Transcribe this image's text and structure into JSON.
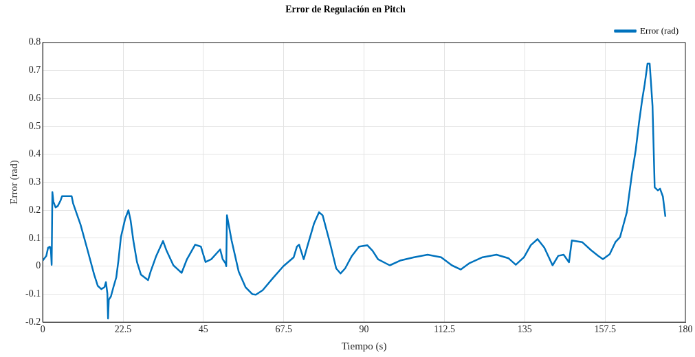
{
  "chart_data": {
    "type": "line",
    "title": "Error de Regulación en Pitch",
    "xlabel": "Tiempo (s)",
    "ylabel": "Error (rad)",
    "x": [
      0,
      1,
      1.5,
      2,
      2.3,
      2.5,
      2.7,
      3,
      3.6,
      4.2,
      5,
      5.4,
      6.7,
      8.1,
      8.5,
      10.6,
      12.5,
      14.4,
      15.4,
      16.4,
      17.3,
      17.7,
      18.1,
      18.3,
      18.5,
      19.1,
      19.8,
      20.6,
      21.2,
      21.9,
      23.1,
      24,
      24.6,
      25.4,
      26.4,
      27.5,
      29.5,
      30.2,
      31.8,
      33.7,
      34.7,
      36.6,
      38.9,
      40.4,
      42.7,
      44.3,
      45.6,
      47.2,
      49.7,
      50.4,
      51.2,
      51.4,
      51.6,
      52.9,
      54.9,
      56.8,
      58.7,
      59.7,
      61.6,
      64.5,
      67.4,
      70.3,
      71.2,
      71.8,
      73.1,
      74.1,
      76,
      77.4,
      78.4,
      80.5,
      82.2,
      83.4,
      84.7,
      86.6,
      88.6,
      90.9,
      92.4,
      93.9,
      97.2,
      100.1,
      104,
      107.8,
      111.6,
      114.6,
      117.1,
      119.4,
      123.2,
      127.1,
      130.5,
      132.5,
      134.8,
      136.7,
      138.6,
      140.5,
      142,
      142.8,
      144.4,
      145.9,
      147.4,
      148.2,
      151.1,
      153.6,
      155.6,
      156.9,
      158.8,
      160.4,
      161.7,
      162.5,
      163.6,
      165,
      166.1,
      167,
      167.9,
      168.6,
      169.4,
      170,
      170.4,
      170.8,
      171.4,
      172.3,
      172.9,
      173.7,
      174.4
    ],
    "series": [
      {
        "name": "Error (rad)",
        "color": "#0072bd",
        "values": [
          0.02,
          0.037,
          0.066,
          0.07,
          0.055,
          0.005,
          0.265,
          0.23,
          0.21,
          0.215,
          0.235,
          0.25,
          0.25,
          0.25,
          0.225,
          0.148,
          0.06,
          -0.03,
          -0.07,
          -0.082,
          -0.075,
          -0.057,
          -0.097,
          -0.187,
          -0.12,
          -0.108,
          -0.075,
          -0.04,
          0.02,
          0.104,
          0.17,
          0.2,
          0.165,
          0.09,
          0.015,
          -0.03,
          -0.05,
          -0.02,
          0.037,
          0.09,
          0.055,
          0.003,
          -0.024,
          0.025,
          0.077,
          0.07,
          0.015,
          0.025,
          0.06,
          0.025,
          0.01,
          0,
          0.182,
          0.092,
          -0.02,
          -0.075,
          -0.1,
          -0.102,
          -0.086,
          -0.042,
          0,
          0.032,
          0.07,
          0.077,
          0.025,
          0.07,
          0.153,
          0.193,
          0.182,
          0.081,
          -0.008,
          -0.026,
          -0.008,
          0.037,
          0.07,
          0.075,
          0.055,
          0.025,
          0.003,
          0.02,
          0.032,
          0.041,
          0.032,
          0.003,
          -0.012,
          0.01,
          0.032,
          0.041,
          0.028,
          0.005,
          0.032,
          0.075,
          0.097,
          0.066,
          0.025,
          0.003,
          0.037,
          0.041,
          0.014,
          0.092,
          0.086,
          0.057,
          0.037,
          0.025,
          0.043,
          0.086,
          0.104,
          0.141,
          0.193,
          0.327,
          0.416,
          0.512,
          0.595,
          0.65,
          0.724,
          0.724,
          0.65,
          0.572,
          0.282,
          0.271,
          0.277,
          0.249,
          0.177
        ]
      }
    ],
    "xlim": [
      0,
      180
    ],
    "xticks": [
      0,
      22.5,
      45,
      67.5,
      90,
      112.5,
      135,
      157.5,
      180
    ],
    "ylim": [
      -0.2,
      0.8
    ],
    "yticks": [
      -0.2,
      -0.1,
      0,
      0.1,
      0.2,
      0.3,
      0.4,
      0.5,
      0.6,
      0.7,
      0.8
    ],
    "grid": true,
    "legend": "top right",
    "marker": "none",
    "line_style": "solid"
  }
}
